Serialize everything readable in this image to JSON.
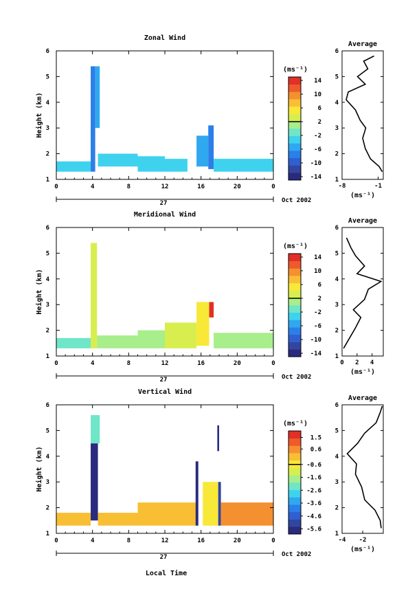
{
  "chart_data": [
    {
      "type": "heatmap",
      "title": "Zonal Wind",
      "xlabel": "",
      "ylabel": "Height (km)",
      "xlim": [
        0,
        24
      ],
      "ylim": [
        1,
        6
      ],
      "xticks": [
        "0",
        "4",
        "8",
        "12",
        "16",
        "20",
        "0"
      ],
      "yticks": [
        "1",
        "2",
        "3",
        "4",
        "5",
        "6"
      ],
      "date_axis": {
        "day": "27",
        "month_label": "Oct 2002"
      },
      "colorbar": {
        "unit": "(ms⁻¹)",
        "range": [
          -15,
          15
        ],
        "ticks": [
          "14",
          "10",
          "6",
          "2",
          "-2",
          "-6",
          "-10",
          "-14"
        ],
        "zero_line": 2
      },
      "blocks": [
        {
          "x": [
            0,
            3.8
          ],
          "y": [
            1.3,
            1.7
          ],
          "value": -3
        },
        {
          "x": [
            3.8,
            4.3
          ],
          "y": [
            1.3,
            5.4
          ],
          "value": -8
        },
        {
          "x": [
            4.3,
            4.8
          ],
          "y": [
            3.0,
            5.4
          ],
          "value": -6
        },
        {
          "x": [
            4.6,
            9.0
          ],
          "y": [
            1.5,
            2.0
          ],
          "value": -4
        },
        {
          "x": [
            9.0,
            12.0
          ],
          "y": [
            1.3,
            1.9
          ],
          "value": -4
        },
        {
          "x": [
            12.0,
            14.5
          ],
          "y": [
            1.3,
            1.8
          ],
          "value": -3
        },
        {
          "x": [
            15.5,
            16.8
          ],
          "y": [
            1.5,
            2.7
          ],
          "value": -5
        },
        {
          "x": [
            16.8,
            17.4
          ],
          "y": [
            1.4,
            3.1
          ],
          "value": -7
        },
        {
          "x": [
            17.4,
            24.0
          ],
          "y": [
            1.3,
            1.8
          ],
          "value": -3
        }
      ],
      "profile": {
        "title": "Average",
        "xlabel": "(ms⁻¹)",
        "xticks": [
          "-8",
          "-1"
        ],
        "xlim": [
          -8,
          0
        ],
        "ylim": [
          1,
          6
        ],
        "yticks": [
          "1",
          "2",
          "3",
          "4",
          "5",
          "6"
        ],
        "points": [
          [
            -0.2,
            1.3
          ],
          [
            -0.8,
            1.5
          ],
          [
            -2.5,
            1.8
          ],
          [
            -3.5,
            2.2
          ],
          [
            -4.0,
            2.6
          ],
          [
            -3.4,
            3.0
          ],
          [
            -4.5,
            3.3
          ],
          [
            -5.4,
            3.7
          ],
          [
            -7.2,
            4.1
          ],
          [
            -6.8,
            4.4
          ],
          [
            -3.5,
            4.7
          ],
          [
            -5.0,
            5.0
          ],
          [
            -3.0,
            5.3
          ],
          [
            -3.8,
            5.6
          ],
          [
            -1.8,
            5.8
          ]
        ]
      }
    },
    {
      "type": "heatmap",
      "title": "Meridional Wind",
      "xlabel": "",
      "ylabel": "Height (km)",
      "xlim": [
        0,
        24
      ],
      "ylim": [
        1,
        6
      ],
      "xticks": [
        "0",
        "4",
        "8",
        "12",
        "16",
        "20",
        "0"
      ],
      "yticks": [
        "1",
        "2",
        "3",
        "4",
        "5",
        "6"
      ],
      "date_axis": {
        "day": "27",
        "month_label": "Oct 2002"
      },
      "colorbar": {
        "unit": "(ms⁻¹)",
        "range": [
          -15,
          15
        ],
        "ticks": [
          "14",
          "10",
          "6",
          "2",
          "-2",
          "-6",
          "-10",
          "-14"
        ],
        "zero_line": 2
      },
      "blocks": [
        {
          "x": [
            0,
            3.8
          ],
          "y": [
            1.3,
            1.7
          ],
          "value": -1
        },
        {
          "x": [
            3.8,
            4.5
          ],
          "y": [
            1.3,
            5.4
          ],
          "value": 3
        },
        {
          "x": [
            4.5,
            9.0
          ],
          "y": [
            1.3,
            1.8
          ],
          "value": 1
        },
        {
          "x": [
            9.0,
            12.0
          ],
          "y": [
            1.3,
            2.0
          ],
          "value": 2
        },
        {
          "x": [
            12.0,
            15.5
          ],
          "y": [
            1.3,
            2.3
          ],
          "value": 3
        },
        {
          "x": [
            15.5,
            16.9
          ],
          "y": [
            1.4,
            3.1
          ],
          "value": 6
        },
        {
          "x": [
            16.9,
            17.4
          ],
          "y": [
            2.5,
            3.1
          ],
          "value": 13
        },
        {
          "x": [
            17.4,
            24.0
          ],
          "y": [
            1.3,
            1.9
          ],
          "value": 1
        }
      ],
      "profile": {
        "title": "Average",
        "xlabel": "(ms⁻¹)",
        "xticks": [
          "0",
          "2",
          "4"
        ],
        "xlim": [
          0,
          5.5
        ],
        "ylim": [
          1,
          6
        ],
        "yticks": [
          "1",
          "2",
          "3",
          "4",
          "5",
          "6"
        ],
        "points": [
          [
            0.2,
            1.3
          ],
          [
            1.0,
            1.7
          ],
          [
            1.8,
            2.1
          ],
          [
            2.5,
            2.5
          ],
          [
            1.5,
            2.8
          ],
          [
            3.0,
            3.2
          ],
          [
            3.5,
            3.6
          ],
          [
            5.2,
            3.9
          ],
          [
            2.0,
            4.2
          ],
          [
            3.0,
            4.5
          ],
          [
            1.8,
            4.9
          ],
          [
            1.2,
            5.2
          ],
          [
            0.6,
            5.6
          ]
        ]
      }
    },
    {
      "type": "heatmap",
      "title": "Vertical Wind",
      "xlabel": "Local Time",
      "ylabel": "Height (km)",
      "xlim": [
        0,
        24
      ],
      "ylim": [
        1,
        6
      ],
      "xticks": [
        "0",
        "4",
        "8",
        "12",
        "16",
        "20",
        "0"
      ],
      "yticks": [
        "1",
        "2",
        "3",
        "4",
        "5",
        "6"
      ],
      "date_axis": {
        "day": "27",
        "month_label": "Oct 2002"
      },
      "colorbar": {
        "unit": "(ms⁻¹)",
        "range": [
          -6,
          2
        ],
        "ticks": [
          "1.5",
          "0.6",
          "-0.6",
          "-1.6",
          "-2.6",
          "-3.6",
          "-4.6",
          "-5.6"
        ],
        "zero_line": -0.6
      },
      "blocks": [
        {
          "x": [
            0,
            3.8
          ],
          "y": [
            1.3,
            1.8
          ],
          "value": 0.2
        },
        {
          "x": [
            3.8,
            4.6
          ],
          "y": [
            1.5,
            4.5
          ],
          "value": -5.5
        },
        {
          "x": [
            3.8,
            4.8
          ],
          "y": [
            4.5,
            5.6
          ],
          "value": -2.5
        },
        {
          "x": [
            4.6,
            9.0
          ],
          "y": [
            1.3,
            1.8
          ],
          "value": 0.2
        },
        {
          "x": [
            9.0,
            15.5
          ],
          "y": [
            1.3,
            2.2
          ],
          "value": -0.2
        },
        {
          "x": [
            15.4,
            15.7
          ],
          "y": [
            1.3,
            3.8
          ],
          "value": -5.5
        },
        {
          "x": [
            16.2,
            17.9
          ],
          "y": [
            1.3,
            3.0
          ],
          "value": -0.4
        },
        {
          "x": [
            17.9,
            18.2
          ],
          "y": [
            1.3,
            3.0
          ],
          "value": -5.2
        },
        {
          "x": [
            17.8,
            18.0
          ],
          "y": [
            4.2,
            5.2
          ],
          "value": -5.5
        },
        {
          "x": [
            18.2,
            24.0
          ],
          "y": [
            1.3,
            2.2
          ],
          "value": 0.3
        }
      ],
      "profile": {
        "title": "Average",
        "xlabel": "(ms⁻¹)",
        "xticks": [
          "-4",
          "-2"
        ],
        "xlim": [
          -4,
          0
        ],
        "ylim": [
          1,
          6
        ],
        "yticks": [
          "1",
          "2",
          "3",
          "4",
          "5",
          "6"
        ],
        "points": [
          [
            -0.2,
            1.2
          ],
          [
            -0.3,
            1.5
          ],
          [
            -0.8,
            1.9
          ],
          [
            -1.8,
            2.3
          ],
          [
            -2.1,
            2.8
          ],
          [
            -2.7,
            3.3
          ],
          [
            -2.6,
            3.7
          ],
          [
            -3.5,
            4.1
          ],
          [
            -2.5,
            4.5
          ],
          [
            -1.8,
            4.9
          ],
          [
            -0.7,
            5.3
          ],
          [
            -0.3,
            5.7
          ],
          [
            -0.1,
            5.95
          ]
        ]
      }
    }
  ]
}
